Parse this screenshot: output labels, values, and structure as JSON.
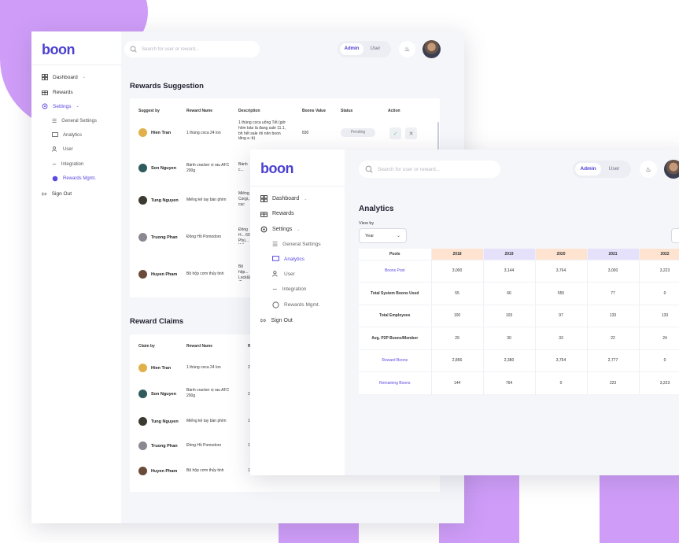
{
  "brand": {
    "logo": "boon",
    "logo_color": "#4b3fd0",
    "accent": "#5b49e0",
    "decor_color": "#cf9df8"
  },
  "nav": {
    "dashboard": "Dashboard",
    "rewards": "Rewards",
    "settings": "Settings",
    "general_settings": "General Settings",
    "analytics": "Analytics",
    "user": "User",
    "integration": "Integration",
    "rewards_mgmt": "Rewards Mgmt.",
    "sign_out": "Sign Out"
  },
  "header": {
    "search_placeholder": "Search for user or reward...",
    "admin": "Admin",
    "user": "User"
  },
  "suggestions": {
    "title": "Rewards Suggestion",
    "columns": [
      "Suggest by",
      "Reward Name",
      "Description",
      "Boons Value",
      "Status",
      "Action"
    ],
    "rows": [
      {
        "name": "Hien Tran",
        "reward": "1 thùng coca 24 lon",
        "desc": "1 thùng coca uống Tết (giờ hôm bảo là đang sale 11.1, bh hết sale rồi nên boon tăng a :b)",
        "value": "830",
        "status": "Pending"
      },
      {
        "name": "Son Nguyen",
        "reward": "Bánh cracker vị rau AFC 200g",
        "desc": "Bánh c... Dinh D...",
        "value": "",
        "status": ""
      },
      {
        "name": "Tung Nguyen",
        "reward": "Miếng kê tay bàn phím",
        "desc": "Miếng... Corgi,... cục cư...",
        "value": "",
        "status": ""
      },
      {
        "name": "Truong Phan",
        "reward": "Đồng Hồ Pomodoro",
        "desc": "Đồng H... 60 Phú... Kiểu D...",
        "value": "",
        "status": ""
      },
      {
        "name": "Huyen Pham",
        "reward": "Bộ hộp cơm thủy tinh",
        "desc": "Bộ hộp... Lock&L... (2 hộp...",
        "value": "",
        "status": ""
      }
    ]
  },
  "claims": {
    "title": "Reward Claims",
    "columns": [
      "Claim by",
      "Reward Name",
      "R"
    ],
    "rows": [
      {
        "name": "Hien Tran",
        "reward": "1 thùng coca 24 lon",
        "extra": "2("
      },
      {
        "name": "Son Nguyen",
        "reward": "Bánh cracker vị rau AFC 200g",
        "extra": "2("
      },
      {
        "name": "Tung Nguyen",
        "reward": "Miếng kê tay bàn phím",
        "extra": "1("
      },
      {
        "name": "Truong Phan",
        "reward": "Đồng Hồ Pomodoro",
        "extra": "1("
      },
      {
        "name": "Huyen Pham",
        "reward": "Bộ hộp cơm thủy tinh",
        "extra": "1("
      }
    ]
  },
  "analytics": {
    "title": "Analytics",
    "view_by_label": "View by",
    "view_by_value": "Year",
    "columns": [
      "Pools",
      "2018",
      "2019",
      "2020",
      "2021",
      "2022"
    ],
    "column_colors": [
      "#ffffff",
      "#fde3d0",
      "#e6e1fb",
      "#fde3d0",
      "#e6e1fb",
      "#fde3d0"
    ],
    "rows": [
      {
        "pool": "Boons Pool",
        "link": true,
        "values": [
          "3,000",
          "3,144",
          "3,764",
          "3,000",
          "3,223"
        ]
      },
      {
        "pool": "Total System Boons Used",
        "link": false,
        "values": [
          "55",
          "66",
          "555",
          "77",
          "0"
        ]
      },
      {
        "pool": "Total Employees",
        "link": false,
        "values": [
          "100",
          "103",
          "97",
          "133",
          "133"
        ]
      },
      {
        "pool": "Avg. P2P Boons/Member",
        "link": false,
        "values": [
          "29",
          "30",
          "33",
          "22",
          "24"
        ]
      },
      {
        "pool": "Reward Boons",
        "link": true,
        "values": [
          "2,856",
          "2,380",
          "3,764",
          "2,777",
          "0"
        ]
      },
      {
        "pool": "Remaining Boons",
        "link": true,
        "values": [
          "144",
          "764",
          "0",
          "223",
          "3,223"
        ]
      }
    ]
  },
  "icons": [
    "grid-icon",
    "gift-icon",
    "gear-icon",
    "sliders-icon",
    "monitor-icon",
    "users-icon",
    "link-icon",
    "badge-icon",
    "logout-icon",
    "search-icon",
    "bell-icon",
    "check-icon",
    "x-icon",
    "chevron-down-icon",
    "download-icon"
  ]
}
